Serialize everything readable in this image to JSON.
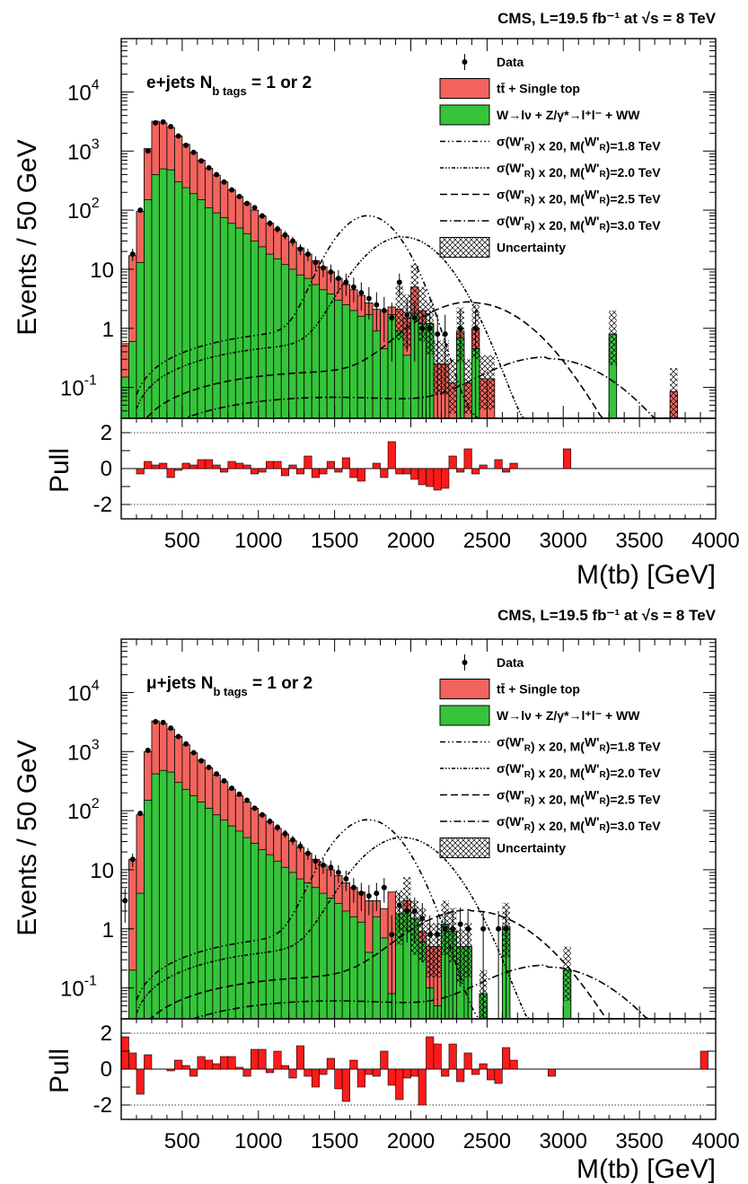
{
  "colors": {
    "top": "#f2645d",
    "ewk": "#35c43a",
    "pull": "#ff1a1a"
  },
  "chart_data": [
    {
      "type": "bar",
      "header": "CMS, L=19.5 fb⁻¹ at √s = 8 TeV",
      "channel_label": "e+jets N_b tags = 1 or 2",
      "ylabel": "Events / 50 GeV",
      "xlabel": "M(tb) [GeV]",
      "pull_label": "Pull",
      "x_ticks": [
        "500",
        "1000",
        "1500",
        "2000",
        "2500",
        "3000",
        "3500",
        "4000"
      ],
      "y_ticks": [
        "10^-1",
        "1",
        "10",
        "10^2",
        "10^3",
        "10^4"
      ],
      "pull_ticks": [
        "2",
        "0",
        "-2"
      ],
      "xlim": [
        100,
        4000
      ],
      "ylim": [
        0.03,
        80000
      ],
      "pull_ylim": [
        -2.8,
        2.8
      ],
      "log_y": true,
      "legend": [
        "Data",
        "tt̄ + Single top",
        "W→lν + Z/γ*→l⁺l⁻ + WW",
        "σ(W'_R) x 20, M(W'_R)=1.8 TeV",
        "σ(W'_R) x 20, M(W'_R)=2.0 TeV",
        "σ(W'_R) x 20, M(W'_R)=2.5 TeV",
        "σ(W'_R) x 20, M(W'_R)=3.0 TeV",
        "Uncertainty"
      ],
      "bin_edges_start": 100,
      "bin_width": 50,
      "ewk": [
        0.15,
        0.6,
        13,
        150,
        400,
        500,
        480,
        300,
        240,
        190,
        150,
        110,
        90,
        75,
        60,
        50,
        40,
        30,
        24,
        18,
        15,
        12,
        10,
        8,
        7,
        5.5,
        4.5,
        3.8,
        3,
        2.5,
        2,
        1.6,
        1.7,
        0.9,
        0.45,
        1.7,
        0.9,
        0.35,
        1.8,
        1.2,
        1.2,
        0,
        0,
        0,
        0.7,
        0,
        0.45,
        0,
        0,
        0,
        0,
        0,
        0,
        0,
        0,
        0,
        0,
        0,
        0,
        0,
        0,
        0,
        0,
        0,
        0.8,
        0,
        0,
        0,
        0,
        0,
        0,
        0,
        0,
        0,
        0,
        0,
        0,
        0
      ],
      "total": [
        0.55,
        17,
        95,
        1100,
        3200,
        3000,
        2500,
        1800,
        1300,
        950,
        700,
        510,
        390,
        300,
        220,
        170,
        130,
        100,
        80,
        60,
        47,
        37,
        29,
        23,
        18,
        14,
        11,
        9,
        7,
        5.5,
        4.5,
        3.6,
        2.7,
        2.1,
        2,
        2.3,
        2.1,
        1.5,
        5,
        2,
        1.2,
        0.25,
        0.25,
        0.12,
        0.9,
        0.12,
        1,
        0.14,
        0.14,
        0,
        0,
        0,
        0,
        0,
        0,
        0,
        0,
        0,
        0,
        0,
        0,
        0,
        0,
        0,
        0.8,
        0,
        0,
        0,
        0,
        0,
        0,
        0,
        0.085,
        0,
        0,
        0,
        0,
        0
      ],
      "data": [
        null,
        18,
        100,
        1000,
        3000,
        3100,
        2600,
        1800,
        1250,
        950,
        680,
        520,
        400,
        300,
        220,
        170,
        130,
        110,
        80,
        60,
        48,
        38,
        30,
        22,
        18,
        13,
        10.5,
        9,
        7,
        6,
        5,
        4,
        3.2,
        2.5,
        2,
        1.5,
        6,
        1.7,
        1.5,
        1,
        1,
        0.8,
        0.8,
        0,
        1,
        0,
        1,
        0,
        0,
        0,
        0,
        0,
        0,
        0,
        0,
        0,
        0,
        0,
        0,
        0,
        0,
        0,
        0,
        0,
        0,
        0,
        0,
        0,
        0,
        0,
        0,
        0,
        0,
        0,
        0,
        0,
        0,
        0
      ],
      "signals": [
        {
          "mass_tev": 1.8,
          "peak": 80,
          "center": 1720,
          "width": 160,
          "low": 0.6
        },
        {
          "mass_tev": 2.0,
          "peak": 35,
          "center": 1950,
          "width": 200,
          "low": 0.35
        },
        {
          "mass_tev": 2.5,
          "peak": 2.7,
          "center": 2400,
          "width": 280,
          "low": 0.12
        },
        {
          "mass_tev": 3.0,
          "peak": 0.3,
          "center": 2900,
          "width": 320,
          "low": 0.045
        }
      ],
      "pull": [
        0,
        0,
        -0.3,
        0.4,
        0.2,
        0.3,
        -0.5,
        -0.1,
        0.3,
        0.2,
        0.5,
        0.5,
        0.2,
        -0.2,
        0.4,
        0.3,
        0.2,
        -0.3,
        -0.2,
        0.4,
        0.4,
        -0.4,
        0.2,
        -0.3,
        0.7,
        -0.5,
        -0.3,
        0.4,
        -0.2,
        0.6,
        -0.5,
        -0.7,
        0,
        0.3,
        -0.5,
        1.5,
        -0.3,
        -0.3,
        -0.6,
        -0.9,
        -1,
        -1.2,
        -1.1,
        0.7,
        -0.2,
        1.1,
        -0.3,
        0.2,
        0,
        0.5,
        -0.2,
        0.3,
        0,
        0,
        0,
        0,
        0,
        0,
        1.1,
        0,
        0,
        0,
        0,
        0,
        0,
        0,
        0,
        0,
        0,
        0,
        0,
        0,
        0,
        0,
        0,
        0,
        0,
        0
      ]
    },
    {
      "type": "bar",
      "header": "CMS, L=19.5 fb⁻¹ at √s = 8 TeV",
      "channel_label": "μ+jets N_b tags = 1 or 2",
      "ylabel": "Events / 50 GeV",
      "xlabel": "M(tb) [GeV]",
      "pull_label": "Pull",
      "x_ticks": [
        "500",
        "1000",
        "1500",
        "2000",
        "2500",
        "3000",
        "3500",
        "4000"
      ],
      "y_ticks": [
        "10^-1",
        "1",
        "10",
        "10^2",
        "10^3",
        "10^4"
      ],
      "pull_ticks": [
        "2",
        "0",
        "-2"
      ],
      "xlim": [
        100,
        4000
      ],
      "ylim": [
        0.03,
        80000
      ],
      "pull_ylim": [
        -2.8,
        2.8
      ],
      "log_y": true,
      "legend": [
        "Data",
        "tt̄ + Single top",
        "W→lν + Z/γ*→l⁺l⁻ + WW",
        "σ(W'_R) x 20, M(W'_R)=1.8 TeV",
        "σ(W'_R) x 20, M(W'_R)=2.0 TeV",
        "σ(W'_R) x 20, M(W'_R)=2.5 TeV",
        "σ(W'_R) x 20, M(W'_R)=3.0 TeV",
        "Uncertainty"
      ],
      "bin_edges_start": 100,
      "bin_width": 50,
      "ewk": [
        0,
        0.2,
        4,
        150,
        420,
        480,
        450,
        300,
        230,
        180,
        140,
        110,
        85,
        70,
        55,
        45,
        35,
        28,
        22,
        18,
        14,
        11,
        9,
        7,
        6,
        5,
        4,
        3.3,
        2.7,
        2,
        1.6,
        1.3,
        0.4,
        1.6,
        0.7,
        0.08,
        1.8,
        2,
        1.5,
        0.6,
        0.1,
        0.05,
        1.2,
        0.9,
        0.5,
        0.5,
        0,
        0.08,
        0,
        0,
        1.1,
        0,
        0,
        0,
        0,
        0,
        0,
        0,
        0.2,
        0,
        0,
        0,
        0,
        0,
        0,
        0,
        0,
        0,
        0,
        0,
        0,
        0,
        0,
        0,
        0,
        0,
        0,
        0
      ],
      "total": [
        0,
        15,
        85,
        1000,
        3300,
        3000,
        2400,
        1800,
        1300,
        950,
        720,
        530,
        400,
        310,
        230,
        180,
        140,
        110,
        85,
        65,
        50,
        40,
        31,
        24,
        19,
        15,
        12,
        10,
        8,
        6,
        5,
        4.2,
        3,
        3,
        2.2,
        4.2,
        1.8,
        3,
        1.2,
        0.9,
        0.5,
        0.5,
        1.2,
        0.9,
        0.4,
        0.5,
        0,
        0.08,
        0,
        0,
        1.1,
        0,
        0,
        0,
        0,
        0,
        0,
        0,
        0.2,
        0,
        0,
        0,
        0,
        0,
        0,
        0,
        0,
        0,
        0,
        0,
        0,
        0,
        0,
        0,
        0,
        0,
        0,
        0
      ],
      "data": [
        3,
        15,
        90,
        1050,
        3200,
        3100,
        2500,
        1800,
        1350,
        960,
        700,
        540,
        420,
        320,
        240,
        190,
        150,
        110,
        85,
        66,
        52,
        41,
        32,
        25,
        19,
        14,
        12,
        11,
        9,
        7,
        5,
        4,
        3.6,
        4,
        5,
        0.8,
        2.5,
        2,
        2,
        1.5,
        0.8,
        0.8,
        1,
        1,
        1.2,
        1,
        0,
        1,
        0,
        1,
        1,
        0,
        0,
        0,
        0,
        0,
        0,
        0,
        0,
        0,
        0,
        0,
        0,
        0,
        0,
        0,
        0,
        0,
        0,
        0,
        0,
        0,
        0,
        0,
        0,
        0,
        0,
        0
      ],
      "signals": [
        {
          "mass_tev": 1.8,
          "peak": 70,
          "center": 1720,
          "width": 170,
          "low": 0.5
        },
        {
          "mass_tev": 2.0,
          "peak": 35,
          "center": 1950,
          "width": 210,
          "low": 0.3
        },
        {
          "mass_tev": 2.5,
          "peak": 2.0,
          "center": 2400,
          "width": 300,
          "low": 0.1
        },
        {
          "mass_tev": 3.0,
          "peak": 0.22,
          "center": 2900,
          "width": 320,
          "low": 0.04
        }
      ],
      "pull": [
        1.8,
        0.9,
        -1.4,
        0.8,
        0,
        0,
        -0.1,
        0.5,
        0.2,
        -0.4,
        0.7,
        0.5,
        0.3,
        0.7,
        0.7,
        0.1,
        -0.4,
        1.1,
        1.1,
        -0.2,
        1,
        0.2,
        -0.5,
        1.3,
        -0.4,
        -1,
        -0.3,
        0.6,
        -1.1,
        -1.8,
        0.5,
        -1,
        -0.3,
        -0.4,
        1,
        -0.9,
        -1.7,
        -0.5,
        -0.4,
        -2,
        1.8,
        1.4,
        -0.4,
        1.4,
        -0.7,
        0.9,
        -0.3,
        0.3,
        -0.6,
        -0.8,
        1.2,
        0.5,
        0,
        0,
        0,
        0,
        -0.4,
        0,
        0,
        0,
        0,
        0,
        0,
        0,
        0,
        0,
        0,
        0,
        0,
        0,
        0,
        0,
        0,
        0,
        0,
        0,
        1,
        0
      ]
    }
  ]
}
